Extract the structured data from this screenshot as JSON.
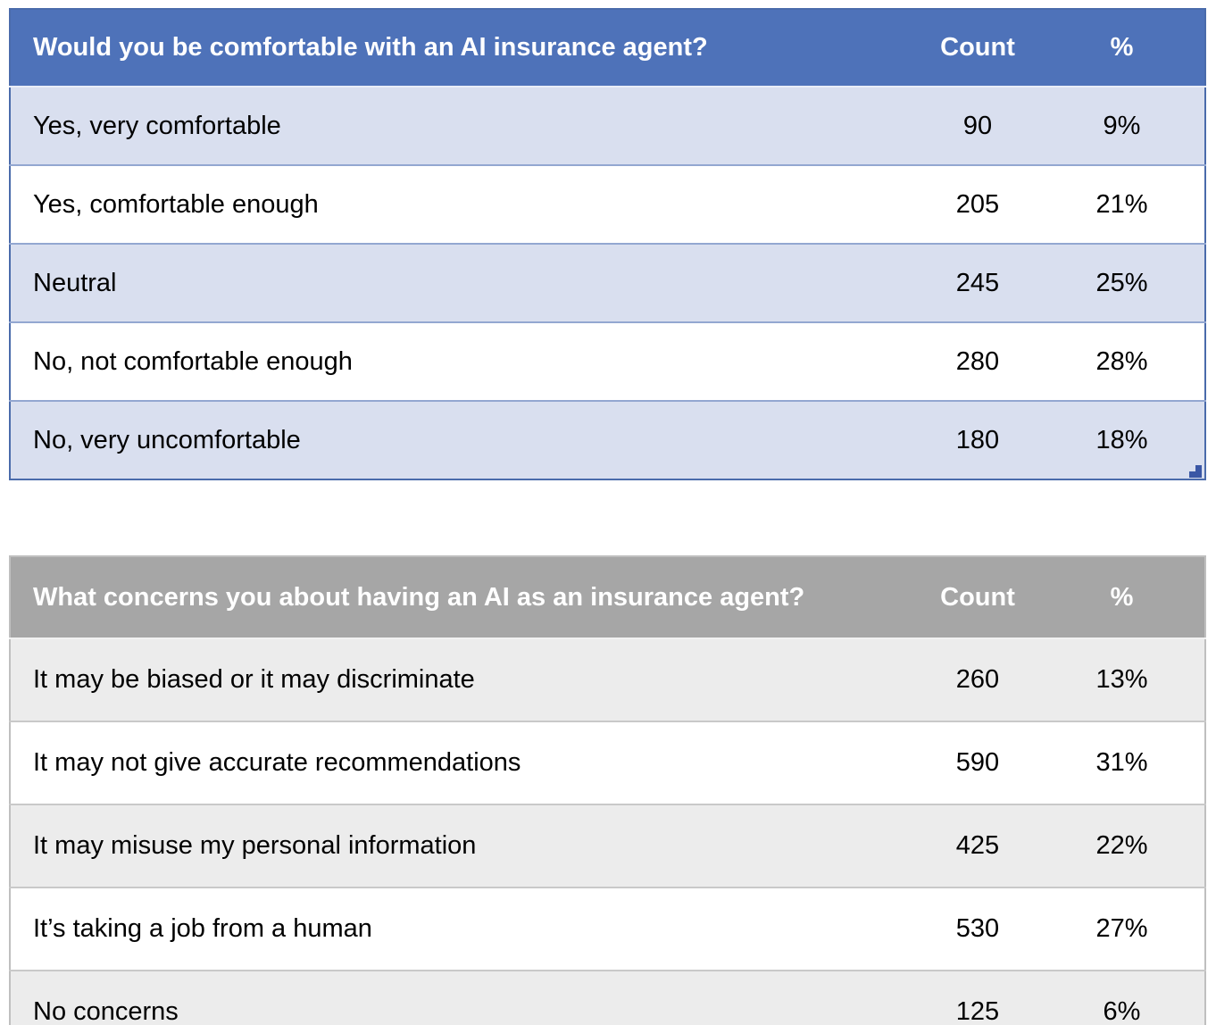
{
  "page": {
    "background": "#FFFFFF",
    "text_color": "#000000"
  },
  "tables": [
    {
      "question": "Would you be comfortable with an AI insurance agent?",
      "columns": {
        "count": "Count",
        "percent": "%"
      },
      "rows": [
        {
          "label": "Yes, very comfortable",
          "count": "90",
          "percent": "9%"
        },
        {
          "label": "Yes, comfortable enough",
          "count": "205",
          "percent": "21%"
        },
        {
          "label": "Neutral",
          "count": "245",
          "percent": "25%"
        },
        {
          "label": "No, not comfortable enough",
          "count": "280",
          "percent": "28%"
        },
        {
          "label": "No, very uncomfortable",
          "count": "180",
          "percent": "18%"
        }
      ],
      "style": {
        "header_bg": "#4E72B9",
        "header_text": "#FFFFFF",
        "banded_row_bg": "#D9DFEF",
        "alt_row_bg": "#FFFFFF",
        "outer_border": "#4A6BAB",
        "row_separator": "#93A7D1",
        "header_separator": "#E9EDF7"
      }
    },
    {
      "question": "What concerns you about having an AI as an insurance agent?",
      "columns": {
        "count": "Count",
        "percent": "%"
      },
      "rows": [
        {
          "label": "It may be biased or it may discriminate",
          "count": "260",
          "percent": "13%"
        },
        {
          "label": "It may not give accurate recommendations",
          "count": "590",
          "percent": "31%"
        },
        {
          "label": "It may misuse my personal information",
          "count": "425",
          "percent": "22%"
        },
        {
          "label": "It’s taking a job from a human",
          "count": "530",
          "percent": "27%"
        },
        {
          "label": "No concerns",
          "count": "125",
          "percent": "6%"
        }
      ],
      "style": {
        "header_bg": "#A6A6A6",
        "header_text": "#FFFFFF",
        "banded_row_bg": "#ECECEC",
        "alt_row_bg": "#FFFFFF",
        "outer_border": "#BFBFBF",
        "row_separator": "#C9C9C9",
        "header_separator": "#F2F2F2"
      }
    }
  ],
  "icons": {
    "resize_handle_color": "#3A57A5"
  }
}
